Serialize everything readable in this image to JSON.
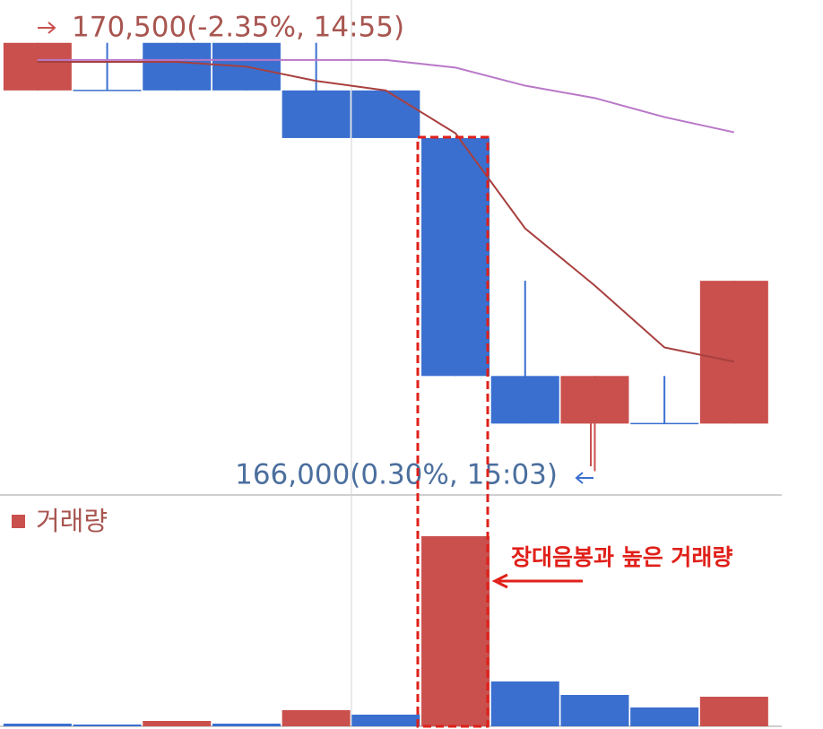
{
  "chart_data": {
    "type": "candlestick",
    "candles": {
      "open": [
        170000,
        170000,
        170500,
        170500,
        170000,
        170000,
        169500,
        167000,
        166500,
        166500,
        166500
      ],
      "high": [
        170500,
        170500,
        170500,
        170500,
        170500,
        170000,
        169500,
        168000,
        167000,
        167000,
        168000
      ],
      "low": [
        170000,
        170000,
        170000,
        170000,
        169500,
        169500,
        167000,
        166500,
        166000,
        166500,
        166500
      ],
      "close": [
        170500,
        170000,
        170000,
        170000,
        169500,
        169500,
        167000,
        166500,
        167000,
        166500,
        168000
      ],
      "up_color": "#c9504d",
      "down_color": "#3a6fcf"
    },
    "moving_averages": [
      {
        "color": "#a8403f",
        "values": [
          170300,
          170300,
          170300,
          170250,
          170100,
          170000,
          169550,
          168550,
          167950,
          167300,
          167150
        ]
      },
      {
        "color": "#b978c8",
        "values": [
          170320,
          170320,
          170320,
          170320,
          170320,
          170320,
          170240,
          170050,
          169920,
          169720,
          169560
        ]
      }
    ],
    "ylim": [
      165750,
      170950
    ],
    "high_label": "170,500(-2.35%, 14:55)",
    "low_label": "166,000(0.30%, 15:03)",
    "volume": {
      "name": "거래량",
      "values": [
        3,
        2,
        6,
        3,
        18,
        13,
        212,
        50,
        35,
        21,
        33
      ],
      "colors": [
        "#3a6fcf",
        "#3a6fcf",
        "#c9504d",
        "#3a6fcf",
        "#c9504d",
        "#3a6fcf",
        "#c9504d",
        "#3a6fcf",
        "#3a6fcf",
        "#3a6fcf",
        "#c9504d"
      ],
      "ylim": [
        0,
        250
      ]
    },
    "annotation": "장대음봉과 높은 거래량"
  }
}
